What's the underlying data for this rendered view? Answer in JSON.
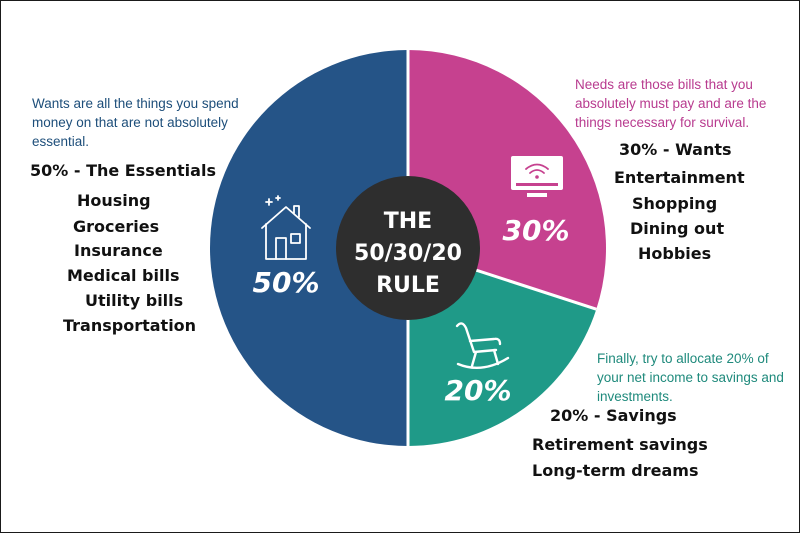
{
  "colors": {
    "essentials": "#255487",
    "wants": "#c6418f",
    "savings": "#1f9a88",
    "center": "#2e2e2e",
    "divider": "#ffffff"
  },
  "chart_data": {
    "type": "pie",
    "title": "THE 50/30/20 RULE",
    "slices": [
      {
        "label": "50%",
        "value": 50,
        "color": "#255487",
        "icon": "house-icon"
      },
      {
        "label": "30%",
        "value": 30,
        "color": "#c6418f",
        "icon": "computer-wifi-icon"
      },
      {
        "label": "20%",
        "value": 20,
        "color": "#1f9a88",
        "icon": "rocking-chair-icon"
      }
    ]
  },
  "center": {
    "line1": "THE",
    "line2": "50/30/20",
    "line3": "RULE"
  },
  "notes": {
    "wants": "Wants are all the things you spend money on that are not absolutely essential.",
    "needs": "Needs are those bills that you absolutely must pay and are the things necessary for survival.",
    "savings": "Finally, try to allocate 20% of your net income to savings and investments."
  },
  "essentials": {
    "heading": "50% - The Essentials",
    "items": [
      "Housing",
      "Groceries",
      "Insurance",
      "Medical bills",
      "Utility bills",
      "Transportation"
    ]
  },
  "wants": {
    "heading": "30% - Wants",
    "items": [
      "Entertainment",
      "Shopping",
      "Dining out",
      "Hobbies"
    ]
  },
  "savings": {
    "heading": "20% - Savings",
    "items": [
      "Retirement savings",
      "Long-term dreams"
    ]
  }
}
